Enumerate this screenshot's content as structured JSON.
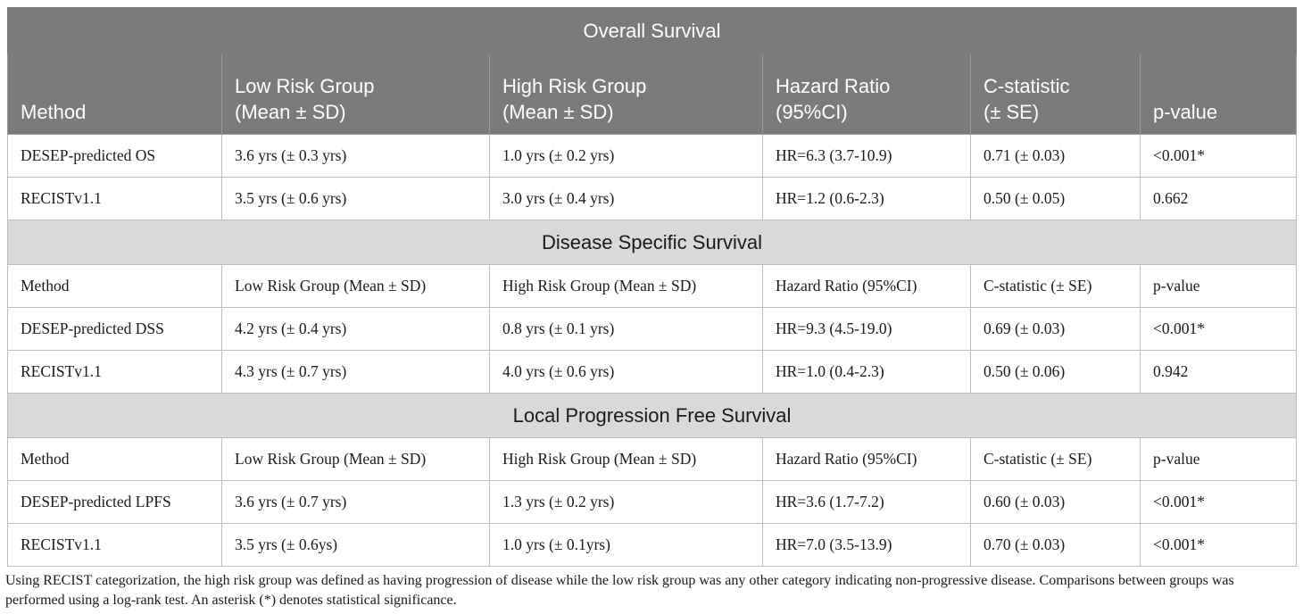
{
  "table": {
    "columns": [
      "Method",
      "Low Risk Group (Mean ± SD)",
      "High Risk Group (Mean ± SD)",
      "Hazard Ratio (95%CI)",
      "C-statistic (± SE)",
      "p-value"
    ],
    "header_lines": [
      [
        "Method",
        ""
      ],
      [
        "Low Risk Group",
        "(Mean ± SD)"
      ],
      [
        "High Risk Group",
        "(Mean ± SD)"
      ],
      [
        "Hazard Ratio",
        "(95%CI)"
      ],
      [
        "C-statistic",
        "(± SE)"
      ],
      [
        "p-value",
        ""
      ]
    ],
    "sections": [
      {
        "title": "Overall Survival",
        "rows": [
          [
            "DESEP-predicted OS",
            "3.6 yrs (± 0.3 yrs)",
            "1.0 yrs (± 0.2 yrs)",
            "HR=6.3 (3.7-10.9)",
            "0.71 (± 0.03)",
            "<0.001*"
          ],
          [
            "RECISTv1.1",
            "3.5 yrs (± 0.6 yrs)",
            "3.0 yrs (± 0.4 yrs)",
            "HR=1.2 (0.6-2.3)",
            "0.50 (± 0.05)",
            "0.662"
          ]
        ]
      },
      {
        "title": "Disease Specific Survival",
        "rows": [
          [
            "DESEP-predicted DSS",
            "4.2 yrs (± 0.4 yrs)",
            "0.8 yrs (± 0.1 yrs)",
            "HR=9.3 (4.5-19.0)",
            "0.69 (± 0.03)",
            "<0.001*"
          ],
          [
            "RECISTv1.1",
            "4.3 yrs (± 0.7 yrs)",
            "4.0 yrs (± 0.6 yrs)",
            "HR=1.0 (0.4-2.3)",
            "0.50 (± 0.06)",
            "0.942"
          ]
        ]
      },
      {
        "title": "Local Progression Free Survival",
        "rows": [
          [
            "DESEP-predicted LPFS",
            "3.6 yrs (± 0.7 yrs)",
            "1.3 yrs (± 0.2 yrs)",
            "HR=3.6 (1.7-7.2)",
            "0.60 (± 0.03)",
            "<0.001*"
          ],
          [
            "RECISTv1.1",
            "3.5 yrs (± 0.6ys)",
            "1.0 yrs (± 0.1yrs)",
            "HR=7.0 (3.5-13.9)",
            "0.70 (± 0.03)",
            "<0.001*"
          ]
        ]
      }
    ]
  },
  "footnote": "Using RECIST categorization, the high risk group was defined as having progression of disease while the low risk group was any other category indicating non-progressive disease. Comparisons between groups was performed using a log-rank test. An asterisk (*) denotes statistical significance.",
  "colors": {
    "header_bg": "#7b7b7b",
    "section_bg": "#d9d9d9",
    "border": "#bdbdbd"
  }
}
